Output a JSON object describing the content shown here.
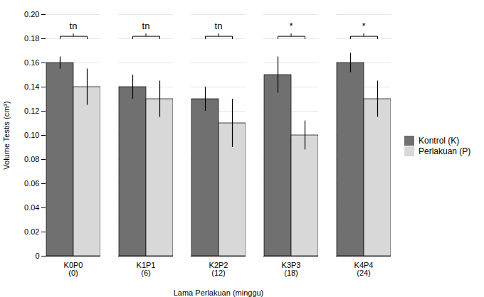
{
  "chart_data": {
    "type": "bar",
    "categories": [
      "K0P0\n(0)",
      "K1P1\n(6)",
      "K2P2\n(12)",
      "K3P3\n(18)",
      "K4P4\n(24)"
    ],
    "series": [
      {
        "name": "Kontrol (K)",
        "color": "#707070",
        "values": [
          0.16,
          0.14,
          0.13,
          0.15,
          0.16
        ],
        "errors": [
          0.005,
          0.01,
          0.01,
          0.015,
          0.008
        ]
      },
      {
        "name": "Perlakuan (P)",
        "color": "#d8d8d8",
        "values": [
          0.14,
          0.13,
          0.11,
          0.1,
          0.13
        ],
        "errors": [
          0.015,
          0.015,
          0.02,
          0.012,
          0.015
        ]
      }
    ],
    "significance": {
      "labels": [
        "tn",
        "tn",
        "tn",
        "*",
        "*"
      ],
      "line_y": 0.182,
      "text_y": 0.188
    },
    "xlabel": "Lama Perlakuan (minggu)",
    "ylabel": "Volume Testis (cm³)",
    "ylim": [
      0,
      0.2
    ],
    "yticks": [
      0,
      0.02,
      0.04,
      0.06,
      0.08,
      {
        "value": 0.1,
        "label": "0.10"
      },
      0.12,
      0.14,
      0.16,
      0.18,
      {
        "value": 0.2,
        "label": "0.20"
      }
    ],
    "grid": true,
    "legend": "right"
  }
}
